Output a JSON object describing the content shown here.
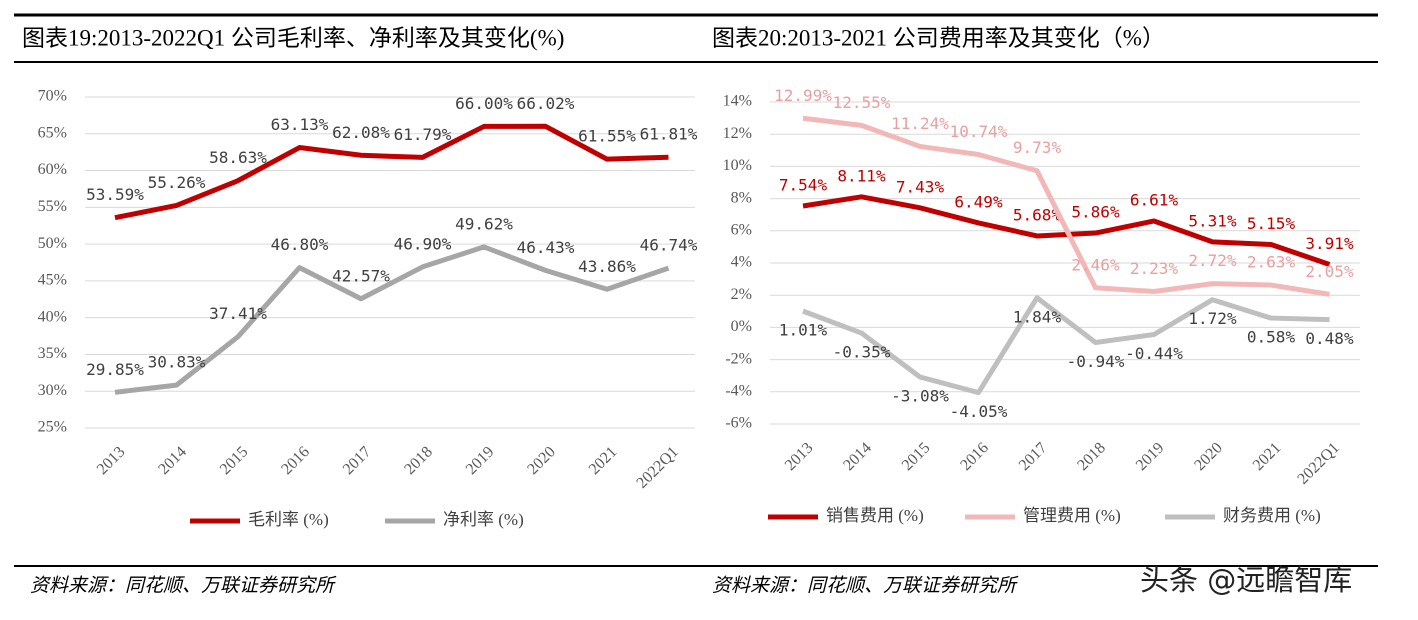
{
  "chart_data": [
    {
      "type": "line",
      "title": "图表19:2013-2022Q1 公司毛利率、净利率及其变化(%)",
      "source": "资料来源：同花顺、万联证券研究所",
      "categories": [
        "2013",
        "2014",
        "2015",
        "2016",
        "2017",
        "2018",
        "2019",
        "2020",
        "2021",
        "2022Q1"
      ],
      "ylim": [
        25,
        70
      ],
      "yticks": [
        {
          "value": 25,
          "label": "25%"
        },
        {
          "value": 30,
          "label": "30%"
        },
        {
          "value": 35,
          "label": "35%"
        },
        {
          "value": 40,
          "label": "40%"
        },
        {
          "value": 45,
          "label": "45%"
        },
        {
          "value": 50,
          "label": "50%"
        },
        {
          "value": 55,
          "label": "55%"
        },
        {
          "value": 60,
          "label": "60%"
        },
        {
          "value": 65,
          "label": "65%"
        },
        {
          "value": 70,
          "label": "70%"
        }
      ],
      "grid": true,
      "legend": "bottom",
      "series": [
        {
          "name": "毛利率 (%)",
          "color": "#c00000",
          "values": [
            53.59,
            55.26,
            58.63,
            63.13,
            62.08,
            61.79,
            66.0,
            66.02,
            61.55,
            61.81
          ],
          "value_labels": [
            "53.59%",
            "55.26%",
            "58.63%",
            "63.13%",
            "62.08%",
            "61.79%",
            "66.00%",
            "66.02%",
            "61.55%",
            "61.81%"
          ]
        },
        {
          "name": "净利率 (%)",
          "color": "#a6a6a6",
          "values": [
            29.85,
            30.83,
            37.41,
            46.8,
            42.57,
            46.9,
            49.62,
            46.43,
            43.86,
            46.74
          ],
          "value_labels": [
            "29.85%",
            "30.83%",
            "37.41%",
            "46.80%",
            "42.57%",
            "46.90%",
            "49.62%",
            "46.43%",
            "43.86%",
            "46.74%"
          ]
        }
      ]
    },
    {
      "type": "line",
      "title": "图表20:2013-2021 公司费用率及其变化（%）",
      "source": "资料来源：同花顺、万联证券研究所",
      "categories": [
        "2013",
        "2014",
        "2015",
        "2016",
        "2017",
        "2018",
        "2019",
        "2020",
        "2021",
        "2022Q1"
      ],
      "ylim": [
        -6,
        14
      ],
      "yticks": [
        {
          "value": -6,
          "label": "-6%"
        },
        {
          "value": -4,
          "label": "-4%"
        },
        {
          "value": -2,
          "label": "-2%"
        },
        {
          "value": 0,
          "label": "0%"
        },
        {
          "value": 2,
          "label": "2%"
        },
        {
          "value": 4,
          "label": "4%"
        },
        {
          "value": 6,
          "label": "6%"
        },
        {
          "value": 8,
          "label": "8%"
        },
        {
          "value": 10,
          "label": "10%"
        },
        {
          "value": 12,
          "label": "12%"
        },
        {
          "value": 14,
          "label": "14%"
        }
      ],
      "grid": true,
      "legend": "bottom",
      "series": [
        {
          "name": "销售费用 (%)",
          "color": "#c00000",
          "values": [
            7.54,
            8.11,
            7.43,
            6.49,
            5.68,
            5.86,
            6.61,
            5.31,
            5.15,
            3.91
          ],
          "value_labels": [
            "7.54%",
            "8.11%",
            "7.43%",
            "6.49%",
            "5.68%",
            "5.86%",
            "6.61%",
            "5.31%",
            "5.15%",
            "3.91%"
          ]
        },
        {
          "name": "管理费用 (%)",
          "color": "#f2b8b8",
          "values": [
            12.99,
            12.55,
            11.24,
            10.74,
            9.73,
            2.46,
            2.23,
            2.72,
            2.63,
            2.05
          ],
          "value_labels": [
            "12.99%",
            "12.55%",
            "11.24%",
            "10.74%",
            "9.73%",
            "2.46%",
            "2.23%",
            "2.72%",
            "2.63%",
            "2.05%"
          ]
        },
        {
          "name": "财务费用 (%)",
          "color": "#bfbfbf",
          "values": [
            1.01,
            -0.35,
            -3.08,
            -4.05,
            1.84,
            -0.94,
            -0.44,
            1.72,
            0.58,
            0.48
          ],
          "value_labels": [
            "1.01%",
            "-0.35%",
            "-3.08%",
            "-4.05%",
            "1.84%",
            "-0.94%",
            "-0.44%",
            "1.72%",
            "0.58%",
            "0.48%"
          ]
        }
      ]
    }
  ],
  "watermark": "头条 @远瞻智库"
}
